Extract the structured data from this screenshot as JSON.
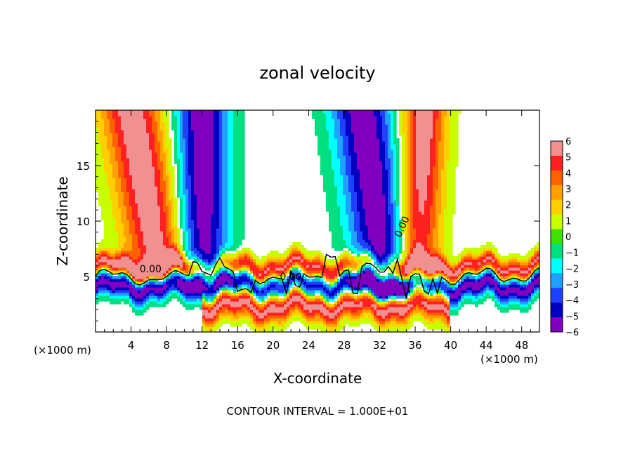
{
  "chart_data": {
    "type": "heatmap",
    "title": "zonal velocity",
    "xlabel": "X-coordinate",
    "ylabel": "Z-coordinate",
    "x_unit": "(×1000 m)",
    "xlim": [
      0,
      50
    ],
    "ylim": [
      0,
      20
    ],
    "x_ticks": [
      4,
      8,
      12,
      16,
      20,
      24,
      28,
      32,
      36,
      40,
      44,
      48
    ],
    "y_ticks": [
      5,
      10,
      15
    ],
    "footer": "CONTOUR INTERVAL = 1.000E+01",
    "contour_labels": [
      "0.00",
      "0.00",
      "0.00"
    ],
    "colorbar": {
      "ticks": [
        6,
        5,
        4,
        3,
        2,
        1,
        0,
        -1,
        -2,
        -3,
        -4,
        -5,
        -6
      ],
      "colors": [
        "#f09090",
        "#ff2020",
        "#ff6000",
        "#ffa000",
        "#ffd000",
        "#c8ff00",
        "#40e000",
        "#00e080",
        "#00ffff",
        "#20a0ff",
        "#2040ff",
        "#0000c0",
        "#8000c0"
      ]
    },
    "jets": [
      {
        "kind": "vertical",
        "x_base": 7.5,
        "x_top": 4,
        "z_from": 5.5,
        "z_to": 20,
        "sign": 1,
        "width": 3.5
      },
      {
        "kind": "vertical",
        "x_base": 12,
        "x_top": 12,
        "z_from": 5,
        "z_to": 20,
        "sign": -1,
        "width": 3
      },
      {
        "kind": "vertical",
        "x_base": 33,
        "x_top": 30,
        "z_from": 4,
        "z_to": 20,
        "sign": -1,
        "width": 3.5
      },
      {
        "kind": "vertical",
        "x_base": 36,
        "x_top": 37,
        "z_from": 5,
        "z_to": 20,
        "sign": 1,
        "width": 2.5
      },
      {
        "kind": "layer",
        "x_from": 0,
        "x_to": 50,
        "z": 5.8,
        "sign": 1,
        "width": 1.0
      },
      {
        "kind": "layer",
        "x_from": 0,
        "x_to": 50,
        "z": 4.2,
        "sign": -1,
        "width": 1.2
      },
      {
        "kind": "layer",
        "x_from": 12,
        "x_to": 40,
        "z": 2.5,
        "sign": 1,
        "width": 1.4
      }
    ]
  }
}
